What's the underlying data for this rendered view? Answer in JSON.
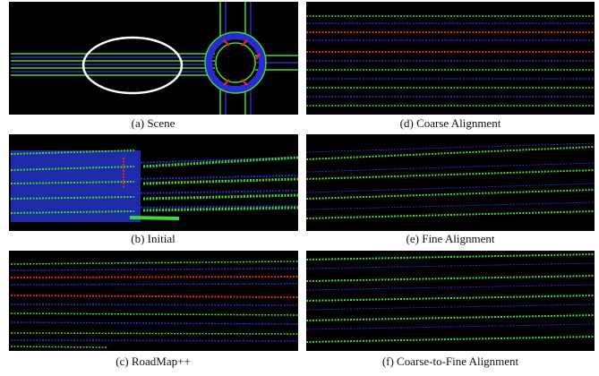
{
  "figure": {
    "panels": [
      {
        "caption": "(a) Scene"
      },
      {
        "caption": "(b) Initial"
      },
      {
        "caption": "(c) RoadMap++"
      },
      {
        "caption": "(d) Coarse Alignment"
      },
      {
        "caption": "(e) Fine Alignment"
      },
      {
        "caption": "(f) Coarse-to-Fine Alignment"
      }
    ]
  }
}
